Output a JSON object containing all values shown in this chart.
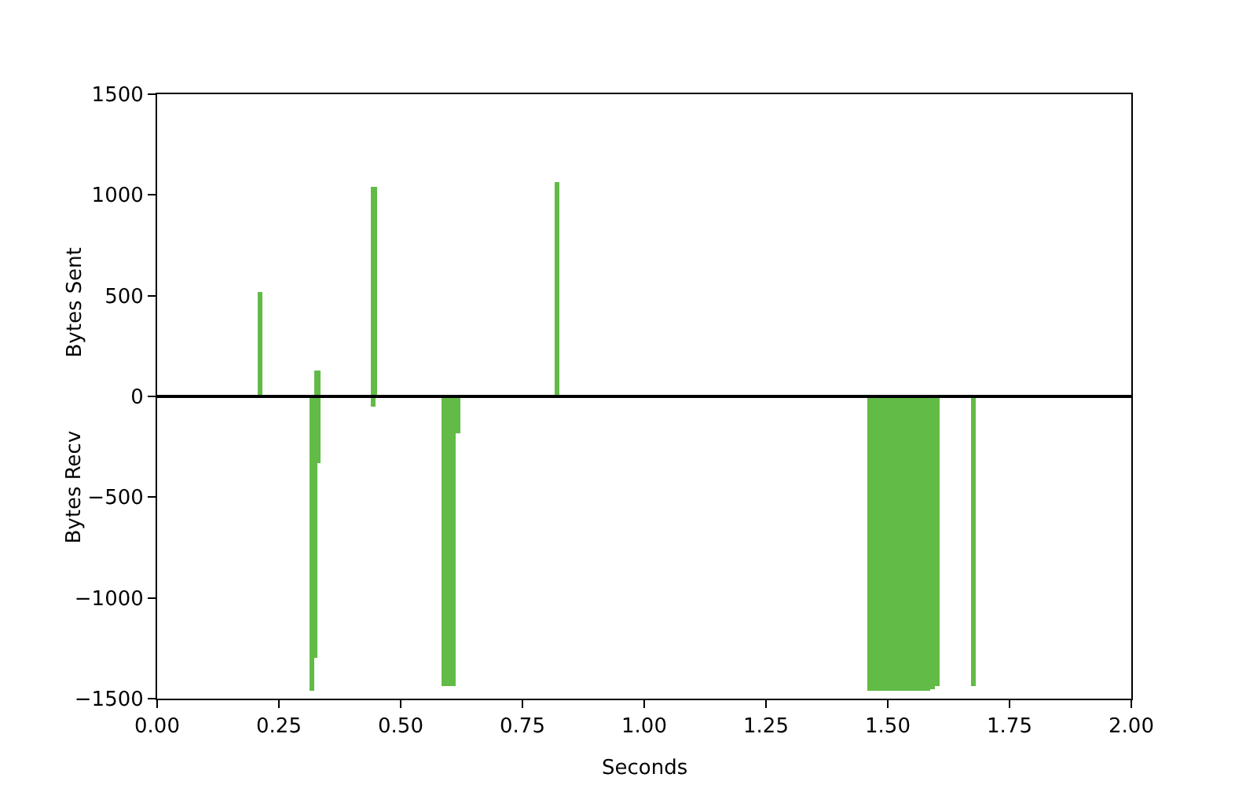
{
  "chart_data": {
    "type": "bar",
    "xlabel": "Seconds",
    "ylabel": "Bytes Sent",
    "annotations": [
      "Bytes Recv"
    ],
    "x": [
      0.211,
      0.318,
      0.324,
      0.329,
      0.331,
      0.443,
      0.445,
      0.589,
      0.599,
      0.609,
      0.618,
      0.82,
      1.463,
      1.473,
      1.483,
      1.493,
      1.503,
      1.513,
      1.523,
      1.533,
      1.543,
      1.553,
      1.563,
      1.573,
      1.583,
      1.593,
      1.603,
      1.676
    ],
    "values": [
      520,
      -1460,
      -1300,
      130,
      -335,
      -50,
      1040,
      -1440,
      -1440,
      -1440,
      -180,
      1060,
      -1460,
      -1460,
      -1460,
      -1460,
      -1460,
      -1460,
      -1460,
      -1460,
      -1460,
      -1460,
      -1460,
      -1460,
      -1460,
      -1450,
      -1440,
      -1440
    ],
    "color": "#62bb47",
    "xlim": [
      0,
      2
    ],
    "ylim": [
      -1500,
      1500
    ],
    "xticks": [
      {
        "value": 0,
        "label": "0.00"
      },
      {
        "value": 0.25,
        "label": "0.25"
      },
      {
        "value": 0.5,
        "label": "0.50"
      },
      {
        "value": 0.75,
        "label": "0.75"
      },
      {
        "value": 1,
        "label": "1.00"
      },
      {
        "value": 1.25,
        "label": "1.25"
      },
      {
        "value": 1.5,
        "label": "1.50"
      },
      {
        "value": 1.75,
        "label": "1.75"
      },
      {
        "value": 2,
        "label": "2.00"
      }
    ],
    "yticks": [
      -1500,
      -1000,
      -500,
      0,
      500,
      1000,
      1500
    ],
    "ref_lines": [
      {
        "axis": "y",
        "value": 0,
        "color": "#000000"
      }
    ]
  }
}
